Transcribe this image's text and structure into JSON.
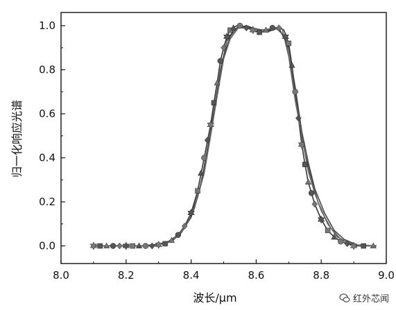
{
  "chart_data": {
    "type": "line",
    "title": "",
    "xlabel": "波长/μm",
    "ylabel": "归一化响应光谱",
    "xlim": [
      8.0,
      9.0
    ],
    "ylim": [
      -0.08,
      1.06
    ],
    "xticks": [
      "8.0",
      "8.2",
      "8.4",
      "8.6",
      "8.8",
      "9.0"
    ],
    "yticks": [
      "0.0",
      "0.2",
      "0.4",
      "0.6",
      "0.8",
      "1.0"
    ],
    "xtick_values": [
      8.0,
      8.2,
      8.4,
      8.6,
      8.8,
      9.0
    ],
    "ytick_values": [
      0.0,
      0.2,
      0.4,
      0.6,
      0.8,
      1.0
    ],
    "grid": false,
    "series": [
      {
        "x": [
          8.1,
          8.13,
          8.16,
          8.19,
          8.22,
          8.25,
          8.28,
          8.31,
          8.34,
          8.36,
          8.38,
          8.4,
          8.42,
          8.44,
          8.46,
          8.47,
          8.48,
          8.49,
          8.5,
          8.51,
          8.52,
          8.53,
          8.54,
          8.555,
          8.57,
          8.59,
          8.61,
          8.63,
          8.65,
          8.67,
          8.685,
          8.7,
          8.71,
          8.72,
          8.73,
          8.74,
          8.75,
          8.76,
          8.78,
          8.8,
          8.82,
          8.84,
          8.86,
          8.88,
          8.9,
          8.93,
          8.96
        ],
        "y": [
          0.0,
          0.0,
          0.0,
          0.0,
          0.0,
          0.0,
          0.003,
          0.01,
          0.025,
          0.05,
          0.09,
          0.15,
          0.25,
          0.4,
          0.55,
          0.65,
          0.74,
          0.84,
          0.9,
          0.95,
          0.98,
          0.99,
          1.0,
          1.0,
          0.99,
          0.98,
          0.97,
          0.975,
          0.985,
          0.995,
          0.98,
          0.92,
          0.82,
          0.7,
          0.58,
          0.46,
          0.37,
          0.29,
          0.19,
          0.12,
          0.07,
          0.04,
          0.02,
          0.01,
          0.0,
          0.0,
          0.0
        ],
        "color": "#333333"
      },
      {
        "x": [
          8.1,
          8.15,
          8.2,
          8.25,
          8.3,
          8.33,
          8.36,
          8.39,
          8.42,
          8.45,
          8.47,
          8.49,
          8.51,
          8.53,
          8.55,
          8.58,
          8.62,
          8.66,
          8.69,
          8.71,
          8.73,
          8.75,
          8.77,
          8.79,
          8.82,
          8.85,
          8.88,
          8.92,
          8.97
        ],
        "y": [
          0.0,
          0.0,
          0.0,
          0.0,
          0.008,
          0.02,
          0.05,
          0.11,
          0.22,
          0.42,
          0.6,
          0.8,
          0.93,
          0.98,
          0.995,
          0.99,
          0.98,
          0.99,
          0.95,
          0.78,
          0.58,
          0.42,
          0.3,
          0.2,
          0.1,
          0.04,
          0.015,
          0.0,
          0.0
        ],
        "color": "#555555"
      },
      {
        "x": [
          8.1,
          8.15,
          8.2,
          8.25,
          8.3,
          8.34,
          8.37,
          8.4,
          8.43,
          8.46,
          8.48,
          8.5,
          8.52,
          8.54,
          8.57,
          8.6,
          8.64,
          8.67,
          8.7,
          8.72,
          8.74,
          8.76,
          8.78,
          8.81,
          8.84,
          8.87,
          8.91,
          8.97
        ],
        "y": [
          0.0,
          0.0,
          0.0,
          0.0,
          0.006,
          0.02,
          0.06,
          0.13,
          0.28,
          0.52,
          0.7,
          0.86,
          0.95,
          0.99,
          1.0,
          0.985,
          0.975,
          0.99,
          0.9,
          0.72,
          0.52,
          0.38,
          0.26,
          0.15,
          0.07,
          0.03,
          0.005,
          0.0
        ],
        "color": "#444444"
      },
      {
        "x": [
          8.1,
          8.16,
          8.22,
          8.28,
          8.32,
          8.35,
          8.38,
          8.41,
          8.44,
          8.46,
          8.48,
          8.5,
          8.52,
          8.545,
          8.57,
          8.61,
          8.65,
          8.68,
          8.7,
          8.72,
          8.74,
          8.76,
          8.78,
          8.8,
          8.83,
          8.86,
          8.9,
          8.96
        ],
        "y": [
          0.0,
          0.0,
          0.0,
          0.0,
          0.012,
          0.035,
          0.08,
          0.17,
          0.33,
          0.5,
          0.68,
          0.85,
          0.94,
          0.99,
          0.99,
          0.98,
          0.985,
          0.985,
          0.86,
          0.66,
          0.5,
          0.34,
          0.24,
          0.16,
          0.08,
          0.03,
          0.005,
          0.0
        ],
        "color": "#666666"
      }
    ],
    "markers": {
      "x": [
        8.1,
        8.12,
        8.14,
        8.16,
        8.18,
        8.2,
        8.22,
        8.24,
        8.26,
        8.28,
        8.3,
        8.32,
        8.34,
        8.36,
        8.38,
        8.4,
        8.42,
        8.43,
        8.44,
        8.45,
        8.46,
        8.47,
        8.48,
        8.49,
        8.5,
        8.51,
        8.52,
        8.53,
        8.55,
        8.57,
        8.59,
        8.61,
        8.63,
        8.65,
        8.67,
        8.69,
        8.7,
        8.71,
        8.72,
        8.73,
        8.74,
        8.75,
        8.76,
        8.77,
        8.78,
        8.8,
        8.82,
        8.84,
        8.86,
        8.88,
        8.9,
        8.93,
        8.96
      ],
      "y": [
        0.0,
        0.0,
        0.0,
        0.0,
        0.0,
        0.0,
        0.0,
        0.0,
        0.0,
        0.0,
        0.005,
        0.01,
        0.025,
        0.05,
        0.09,
        0.15,
        0.25,
        0.33,
        0.4,
        0.48,
        0.55,
        0.65,
        0.74,
        0.84,
        0.9,
        0.95,
        0.98,
        0.99,
        1.0,
        0.99,
        0.98,
        0.97,
        0.98,
        0.99,
        0.99,
        0.95,
        0.92,
        0.82,
        0.7,
        0.58,
        0.46,
        0.37,
        0.29,
        0.24,
        0.19,
        0.12,
        0.07,
        0.04,
        0.02,
        0.01,
        0.0,
        0.0,
        0.0
      ]
    }
  },
  "watermark": {
    "text": "红外芯闻",
    "icon": "wechat-icon"
  }
}
